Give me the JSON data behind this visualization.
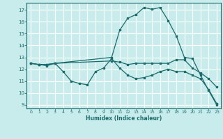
{
  "xlabel": "Humidex (Indice chaleur)",
  "bg_color": "#c8ecec",
  "grid_color": "#ffffff",
  "line_color": "#1a6b6b",
  "xlim": [
    -0.5,
    23.5
  ],
  "ylim": [
    8.7,
    17.6
  ],
  "xticks": [
    0,
    1,
    2,
    3,
    4,
    5,
    6,
    7,
    8,
    9,
    10,
    11,
    12,
    13,
    14,
    15,
    16,
    17,
    18,
    19,
    20,
    21,
    22,
    23
  ],
  "yticks": [
    9,
    10,
    11,
    12,
    13,
    14,
    15,
    16,
    17
  ],
  "line1_x": [
    0,
    1,
    2,
    3,
    4,
    5,
    6,
    7,
    8,
    9,
    10,
    11,
    12,
    13,
    14,
    15,
    16,
    17,
    18,
    19,
    20,
    21,
    22,
    23
  ],
  "line1_y": [
    12.5,
    12.4,
    12.3,
    12.5,
    11.8,
    11.0,
    10.8,
    10.7,
    11.8,
    12.1,
    12.9,
    12.1,
    11.5,
    11.2,
    11.3,
    11.5,
    11.8,
    12.0,
    11.8,
    11.8,
    11.5,
    11.2,
    10.3,
    9.1
  ],
  "line2_x": [
    0,
    1,
    2,
    3,
    10,
    11,
    12,
    13,
    14,
    15,
    16,
    17,
    18,
    19,
    20,
    21,
    22,
    23
  ],
  "line2_y": [
    12.5,
    12.4,
    12.4,
    12.5,
    12.7,
    12.6,
    12.4,
    12.5,
    12.5,
    12.5,
    12.5,
    12.5,
    12.8,
    12.8,
    12.1,
    11.7,
    11.2,
    10.5
  ],
  "line3_x": [
    0,
    1,
    2,
    3,
    10,
    11,
    12,
    13,
    14,
    15,
    16,
    17,
    18,
    19,
    20,
    21,
    22,
    23
  ],
  "line3_y": [
    12.5,
    12.4,
    12.4,
    12.5,
    13.0,
    15.3,
    16.3,
    16.6,
    17.2,
    17.05,
    17.2,
    16.1,
    14.8,
    13.0,
    12.9,
    11.5,
    10.2,
    9.0
  ]
}
